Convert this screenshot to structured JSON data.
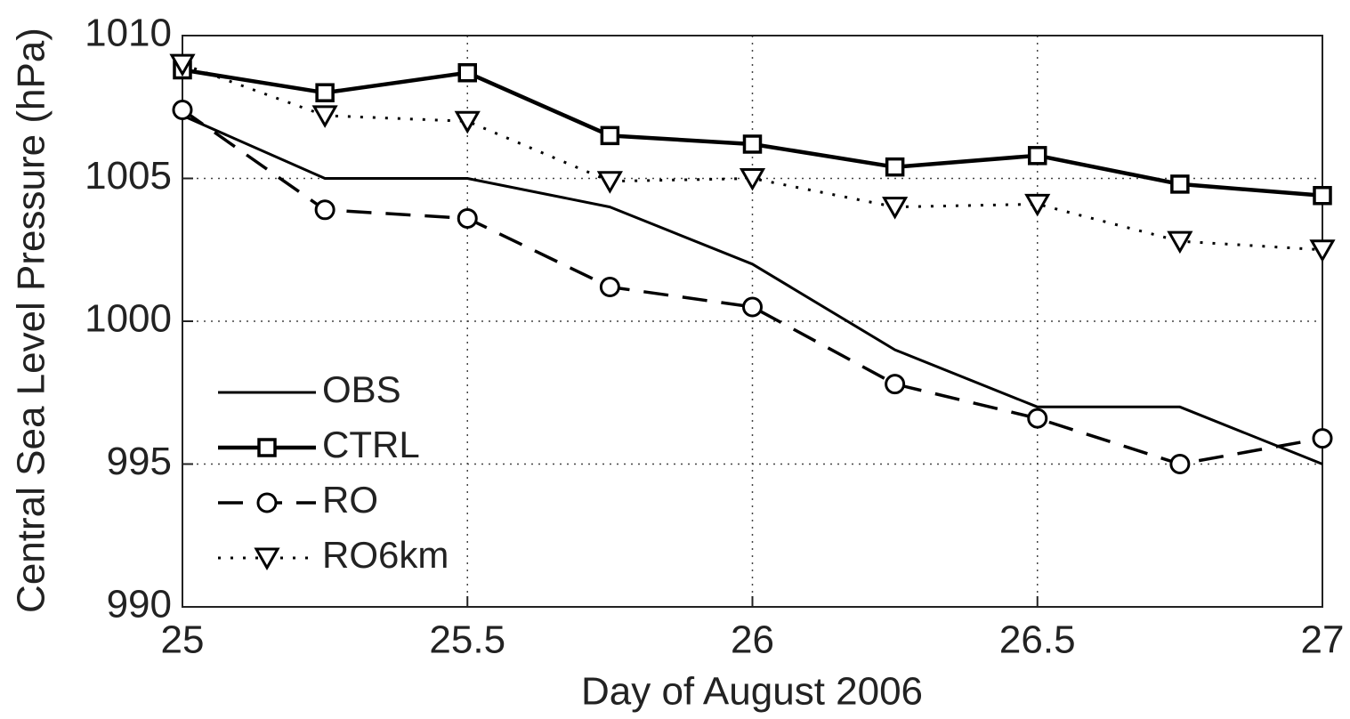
{
  "chart_data": {
    "type": "line",
    "xlabel": "Day of August 2006",
    "ylabel": "Central Sea Level Pressure (hPa)",
    "x": [
      25,
      25.25,
      25.5,
      25.75,
      26,
      26.25,
      26.5,
      26.75,
      27
    ],
    "xlim": [
      25,
      27
    ],
    "xticks": [
      25,
      25.5,
      26,
      26.5,
      27
    ],
    "ylim": [
      990,
      1010
    ],
    "yticks": [
      990,
      995,
      1000,
      1005,
      1010
    ],
    "grid": true,
    "legend": "lower left",
    "series": [
      {
        "name": "OBS",
        "color": "#000000",
        "linestyle": "solid",
        "marker": "none",
        "values": [
          1007.2,
          1005,
          1005,
          1004,
          1002,
          999,
          997,
          997,
          995
        ]
      },
      {
        "name": "CTRL",
        "color": "#000000",
        "linestyle": "solid-thick",
        "marker": "square",
        "values": [
          1008.8,
          1008.0,
          1008.7,
          1006.5,
          1006.2,
          1005.4,
          1005.8,
          1004.8,
          1004.4
        ]
      },
      {
        "name": "RO",
        "color": "#000000",
        "linestyle": "dashed",
        "marker": "circle",
        "values": [
          1007.4,
          1003.9,
          1003.6,
          1001.2,
          1000.5,
          997.8,
          996.6,
          995.0,
          995.9
        ]
      },
      {
        "name": "RO6km",
        "color": "#000000",
        "linestyle": "dotted",
        "marker": "triangle-down",
        "values": [
          1009.0,
          1007.2,
          1007.0,
          1004.9,
          1005.0,
          1004.0,
          1004.1,
          1002.8,
          1002.5
        ]
      }
    ]
  }
}
